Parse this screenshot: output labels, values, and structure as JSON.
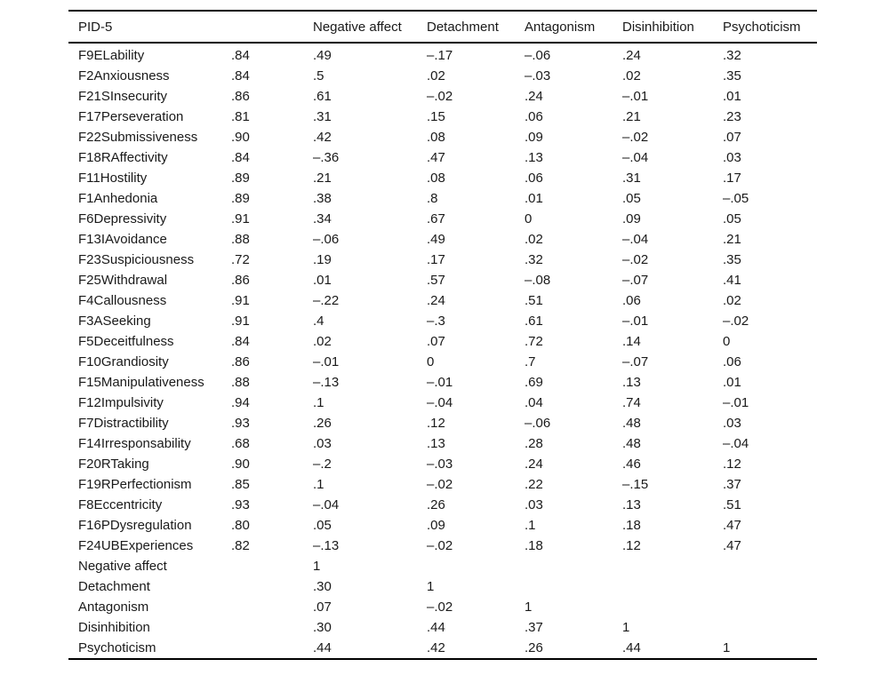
{
  "table": {
    "columns": [
      "PID-5",
      "",
      "Negative affect",
      "Detachment",
      "Antagonism",
      "Disinhibition",
      "Psychoticism"
    ],
    "rows": [
      [
        "F9ELability",
        ".84",
        ".49",
        "–.17",
        "–.06",
        ".24",
        ".32"
      ],
      [
        "F2Anxiousness",
        ".84",
        ".5",
        ".02",
        "–.03",
        ".02",
        ".35"
      ],
      [
        "F21SInsecurity",
        ".86",
        ".61",
        "–.02",
        ".24",
        "–.01",
        ".01"
      ],
      [
        "F17Perseveration",
        ".81",
        ".31",
        ".15",
        ".06",
        ".21",
        ".23"
      ],
      [
        "F22Submissiveness",
        ".90",
        ".42",
        ".08",
        ".09",
        "–.02",
        ".07"
      ],
      [
        "F18RAffectivity",
        ".84",
        "–.36",
        ".47",
        ".13",
        "–.04",
        ".03"
      ],
      [
        "F11Hostility",
        ".89",
        ".21",
        ".08",
        ".06",
        ".31",
        ".17"
      ],
      [
        "F1Anhedonia",
        ".89",
        ".38",
        ".8",
        ".01",
        ".05",
        "–.05"
      ],
      [
        "F6Depressivity",
        ".91",
        ".34",
        ".67",
        "0",
        ".09",
        ".05"
      ],
      [
        "F13IAvoidance",
        ".88",
        "–.06",
        ".49",
        ".02",
        "–.04",
        ".21"
      ],
      [
        "F23Suspiciousness",
        ".72",
        ".19",
        ".17",
        ".32",
        "–.02",
        ".35"
      ],
      [
        "F25Withdrawal",
        ".86",
        ".01",
        ".57",
        "–.08",
        "–.07",
        ".41"
      ],
      [
        "F4Callousness",
        ".91",
        "–.22",
        ".24",
        ".51",
        ".06",
        ".02"
      ],
      [
        "F3ASeeking",
        ".91",
        ".4",
        "–.3",
        ".61",
        "–.01",
        "–.02"
      ],
      [
        "F5Deceitfulness",
        ".84",
        ".02",
        ".07",
        ".72",
        ".14",
        "0"
      ],
      [
        "F10Grandiosity",
        ".86",
        "–.01",
        "0",
        ".7",
        "–.07",
        ".06"
      ],
      [
        "F15Manipulativeness",
        ".88",
        "–.13",
        "–.01",
        ".69",
        ".13",
        ".01"
      ],
      [
        "F12Impulsivity",
        ".94",
        ".1",
        "–.04",
        ".04",
        ".74",
        "–.01"
      ],
      [
        "F7Distractibility",
        ".93",
        ".26",
        ".12",
        "–.06",
        ".48",
        ".03"
      ],
      [
        "F14Irresponsability",
        ".68",
        ".03",
        ".13",
        ".28",
        ".48",
        "–.04"
      ],
      [
        "F20RTaking",
        ".90",
        "–.2",
        "–.03",
        ".24",
        ".46",
        ".12"
      ],
      [
        "F19RPerfectionism",
        ".85",
        ".1",
        "–.02",
        ".22",
        "–.15",
        ".37"
      ],
      [
        "F8Eccentricity",
        ".93",
        "–.04",
        ".26",
        ".03",
        ".13",
        ".51"
      ],
      [
        "F16PDysregulation",
        ".80",
        ".05",
        ".09",
        ".1",
        ".18",
        ".47"
      ],
      [
        "F24UBExperiences",
        ".82",
        "–.13",
        "–.02",
        ".18",
        ".12",
        ".47"
      ],
      [
        "Negative affect",
        "",
        "1",
        "",
        "",
        "",
        ""
      ],
      [
        "Detachment",
        "",
        ".30",
        "1",
        "",
        "",
        ""
      ],
      [
        "Antagonism",
        "",
        ".07",
        "–.02",
        "1",
        "",
        ""
      ],
      [
        "Disinhibition",
        "",
        ".30",
        ".44",
        ".37",
        "1",
        ""
      ],
      [
        "Psychoticism",
        "",
        ".44",
        ".42",
        ".26",
        ".44",
        "1"
      ]
    ]
  }
}
